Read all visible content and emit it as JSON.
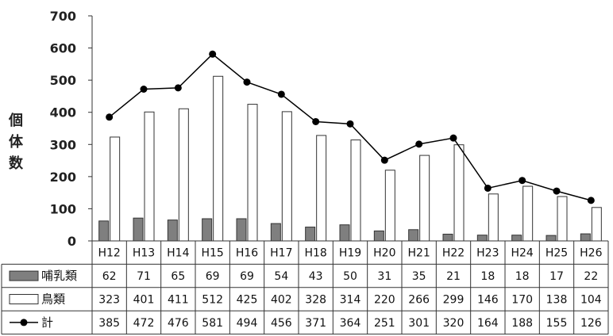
{
  "chart_data": {
    "type": "bar",
    "categories": [
      "H12",
      "H13",
      "H14",
      "H15",
      "H16",
      "H17",
      "H18",
      "H19",
      "H20",
      "H21",
      "H22",
      "H23",
      "H24",
      "H25",
      "H26"
    ],
    "series": [
      {
        "name": "哺乳類",
        "kind": "bar",
        "color": "#7f7f7f",
        "values": [
          62,
          71,
          65,
          69,
          69,
          54,
          43,
          50,
          31,
          35,
          21,
          18,
          18,
          17,
          22
        ]
      },
      {
        "name": "鳥類",
        "kind": "bar",
        "color": "#ffffff",
        "values": [
          323,
          401,
          411,
          512,
          425,
          402,
          328,
          314,
          220,
          266,
          299,
          146,
          170,
          138,
          104
        ]
      },
      {
        "name": "計",
        "kind": "line",
        "color": "#000000",
        "values": [
          385,
          472,
          476,
          581,
          494,
          456,
          371,
          364,
          251,
          301,
          320,
          164,
          188,
          155,
          126
        ]
      }
    ],
    "ylabel": "個体数",
    "ylim": [
      0,
      700
    ],
    "yticks": [
      0,
      100,
      200,
      300,
      400,
      500,
      600,
      700
    ],
    "grid": false,
    "legend": "data-table-left"
  }
}
